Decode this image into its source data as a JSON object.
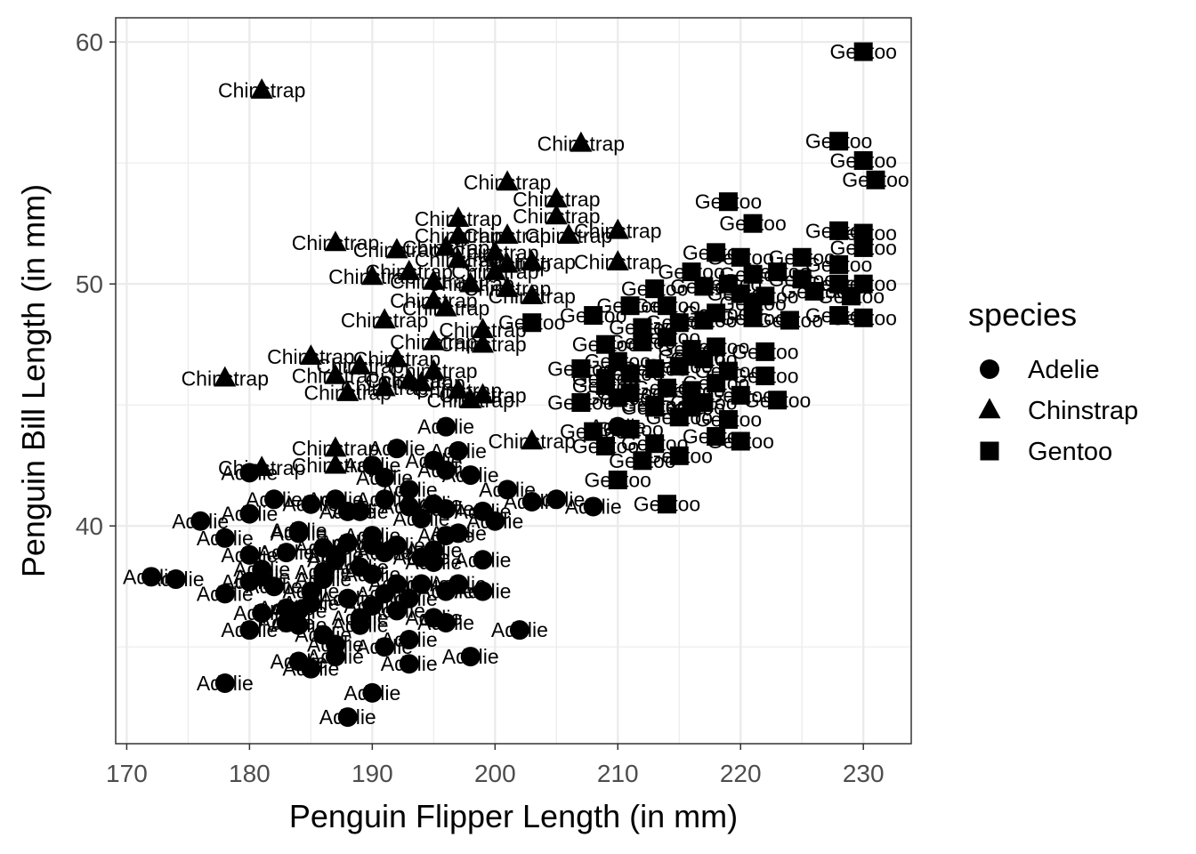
{
  "chart_data": {
    "type": "scatter",
    "title": "",
    "xlabel": "Penguin Flipper Length (in mm)",
    "ylabel": "Penguin Bill Length (in mm)",
    "xlim": [
      169.1,
      233.9
    ],
    "ylim": [
      31.0,
      61.0
    ],
    "xticks": [
      170,
      180,
      190,
      200,
      210,
      220,
      230
    ],
    "yticks": [
      40,
      50,
      60
    ],
    "grid": true,
    "legend": {
      "title": "species",
      "position": "right",
      "entries": [
        "Adelie",
        "Chinstrap",
        "Gentoo"
      ]
    },
    "series": [
      {
        "name": "Adelie",
        "shape": "circle",
        "points": [
          [
            188,
            32.1
          ],
          [
            178,
            33.5
          ],
          [
            190,
            33.1
          ],
          [
            184,
            34.4
          ],
          [
            185,
            34.1
          ],
          [
            193,
            34.3
          ],
          [
            198,
            34.6
          ],
          [
            202,
            35.7
          ],
          [
            181,
            36.4
          ],
          [
            187,
            34.6
          ],
          [
            191,
            35.0
          ],
          [
            180,
            35.7
          ],
          [
            186,
            35.5
          ],
          [
            195,
            36.2
          ],
          [
            193,
            35.3
          ],
          [
            196,
            36.0
          ],
          [
            183,
            36.0
          ],
          [
            189,
            35.9
          ],
          [
            184,
            36.5
          ],
          [
            190,
            36.7
          ],
          [
            187,
            35.1
          ],
          [
            193,
            37.0
          ],
          [
            178,
            37.2
          ],
          [
            172,
            37.9
          ],
          [
            174,
            37.8
          ],
          [
            180,
            37.7
          ],
          [
            182,
            37.5
          ],
          [
            185,
            37.3
          ],
          [
            181,
            38.2
          ],
          [
            186,
            38.1
          ],
          [
            190,
            38.0
          ],
          [
            192,
            37.6
          ],
          [
            194,
            37.6
          ],
          [
            197,
            37.6
          ],
          [
            199,
            37.3
          ],
          [
            187,
            38.6
          ],
          [
            195,
            38.5
          ],
          [
            199,
            38.6
          ],
          [
            178,
            39.5
          ],
          [
            184,
            39.7
          ],
          [
            186,
            39.1
          ],
          [
            190,
            39.2
          ],
          [
            191,
            38.9
          ],
          [
            195,
            39.0
          ],
          [
            196,
            39.6
          ],
          [
            180,
            38.8
          ],
          [
            188,
            39.3
          ],
          [
            176,
            40.2
          ],
          [
            180,
            40.5
          ],
          [
            182,
            41.1
          ],
          [
            185,
            40.9
          ],
          [
            187,
            41.1
          ],
          [
            189,
            40.6
          ],
          [
            191,
            41.1
          ],
          [
            193,
            40.8
          ],
          [
            194,
            40.3
          ],
          [
            196,
            40.7
          ],
          [
            199,
            40.6
          ],
          [
            200,
            40.2
          ],
          [
            203,
            41.0
          ],
          [
            205,
            41.1
          ],
          [
            208,
            40.8
          ],
          [
            180,
            42.2
          ],
          [
            190,
            42.5
          ],
          [
            191,
            42.0
          ],
          [
            195,
            42.7
          ],
          [
            196,
            42.3
          ],
          [
            197,
            43.1
          ],
          [
            198,
            42.1
          ],
          [
            201,
            41.5
          ],
          [
            192,
            43.2
          ],
          [
            196,
            44.1
          ],
          [
            210,
            44.1
          ],
          [
            183,
            36.6
          ],
          [
            188,
            37.0
          ],
          [
            192,
            36.5
          ],
          [
            184,
            39.8
          ],
          [
            189,
            38.3
          ],
          [
            193,
            41.5
          ],
          [
            186,
            37.8
          ],
          [
            190,
            39.6
          ],
          [
            194,
            38.7
          ],
          [
            183,
            38.9
          ],
          [
            188,
            40.6
          ],
          [
            192,
            39.2
          ],
          [
            185,
            36.8
          ],
          [
            189,
            36.2
          ],
          [
            196,
            37.3
          ],
          [
            181,
            37.9
          ],
          [
            184,
            35.9
          ],
          [
            187,
            38.8
          ],
          [
            191,
            37.2
          ],
          [
            195,
            40.9
          ],
          [
            197,
            39.7
          ]
        ]
      },
      {
        "name": "Chinstrap",
        "shape": "triangle",
        "points": [
          [
            181,
            58.0
          ],
          [
            207,
            55.8
          ],
          [
            201,
            54.2
          ],
          [
            205,
            53.5
          ],
          [
            205,
            52.8
          ],
          [
            197,
            52.7
          ],
          [
            197,
            52.0
          ],
          [
            201,
            52.0
          ],
          [
            206,
            52.0
          ],
          [
            210,
            52.2
          ],
          [
            187,
            51.7
          ],
          [
            192,
            51.4
          ],
          [
            196,
            51.5
          ],
          [
            197,
            51.0
          ],
          [
            200,
            51.3
          ],
          [
            201,
            50.8
          ],
          [
            203,
            50.9
          ],
          [
            210,
            50.9
          ],
          [
            190,
            50.3
          ],
          [
            193,
            50.5
          ],
          [
            195,
            50.1
          ],
          [
            198,
            50.0
          ],
          [
            203,
            49.5
          ],
          [
            201,
            49.8
          ],
          [
            195,
            49.3
          ],
          [
            191,
            48.5
          ],
          [
            199,
            48.1
          ],
          [
            199,
            47.5
          ],
          [
            195,
            47.6
          ],
          [
            185,
            47.0
          ],
          [
            189,
            46.6
          ],
          [
            192,
            46.9
          ],
          [
            195,
            46.4
          ],
          [
            178,
            46.1
          ],
          [
            187,
            46.2
          ],
          [
            188,
            45.5
          ],
          [
            191,
            45.7
          ],
          [
            194,
            45.9
          ],
          [
            197,
            45.6
          ],
          [
            199,
            45.4
          ],
          [
            187,
            43.2
          ],
          [
            203,
            43.5
          ],
          [
            181,
            42.4
          ],
          [
            187,
            42.5
          ],
          [
            193,
            46.0
          ],
          [
            196,
            49.0
          ],
          [
            200,
            50.5
          ],
          [
            198,
            45.2
          ]
        ]
      },
      {
        "name": "Gentoo",
        "shape": "square",
        "points": [
          [
            230,
            59.6
          ],
          [
            228,
            55.9
          ],
          [
            230,
            55.1
          ],
          [
            231,
            54.3
          ],
          [
            219,
            53.4
          ],
          [
            221,
            52.5
          ],
          [
            228,
            52.2
          ],
          [
            230,
            52.1
          ],
          [
            230,
            51.5
          ],
          [
            218,
            51.3
          ],
          [
            220,
            51.1
          ],
          [
            225,
            51.1
          ],
          [
            228,
            50.8
          ],
          [
            216,
            50.5
          ],
          [
            221,
            50.4
          ],
          [
            223,
            50.5
          ],
          [
            225,
            50.2
          ],
          [
            228,
            50.0
          ],
          [
            230,
            50.0
          ],
          [
            213,
            49.8
          ],
          [
            217,
            49.9
          ],
          [
            220,
            49.6
          ],
          [
            222,
            49.5
          ],
          [
            229,
            49.5
          ],
          [
            208,
            48.7
          ],
          [
            211,
            49.1
          ],
          [
            214,
            49.1
          ],
          [
            218,
            48.8
          ],
          [
            221,
            48.6
          ],
          [
            228,
            48.7
          ],
          [
            230,
            48.6
          ],
          [
            203,
            48.4
          ],
          [
            209,
            47.5
          ],
          [
            212,
            47.6
          ],
          [
            216,
            47.3
          ],
          [
            218,
            47.4
          ],
          [
            222,
            47.2
          ],
          [
            207,
            46.5
          ],
          [
            210,
            46.8
          ],
          [
            213,
            46.5
          ],
          [
            215,
            46.6
          ],
          [
            219,
            46.4
          ],
          [
            222,
            46.2
          ],
          [
            209,
            45.8
          ],
          [
            211,
            45.5
          ],
          [
            214,
            45.7
          ],
          [
            216,
            45.6
          ],
          [
            220,
            45.4
          ],
          [
            223,
            45.2
          ],
          [
            207,
            45.1
          ],
          [
            210,
            45.3
          ],
          [
            213,
            44.9
          ],
          [
            217,
            45.1
          ],
          [
            219,
            44.4
          ],
          [
            208,
            43.9
          ],
          [
            211,
            44.0
          ],
          [
            215,
            44.5
          ],
          [
            218,
            43.7
          ],
          [
            220,
            43.5
          ],
          [
            209,
            43.3
          ],
          [
            213,
            43.4
          ],
          [
            215,
            42.9
          ],
          [
            210,
            41.9
          ],
          [
            214,
            40.9
          ],
          [
            212,
            42.7
          ],
          [
            216,
            44.9
          ],
          [
            214,
            47.8
          ],
          [
            217,
            46.9
          ],
          [
            224,
            48.5
          ],
          [
            226,
            49.7
          ],
          [
            211,
            46.3
          ],
          [
            215,
            48.4
          ],
          [
            218,
            45.9
          ],
          [
            221,
            49.2
          ],
          [
            212,
            48.2
          ],
          [
            216,
            47.0
          ],
          [
            219,
            50.0
          ],
          [
            213,
            45.0
          ],
          [
            209,
            46.1
          ],
          [
            217,
            48.5
          ]
        ]
      }
    ]
  }
}
